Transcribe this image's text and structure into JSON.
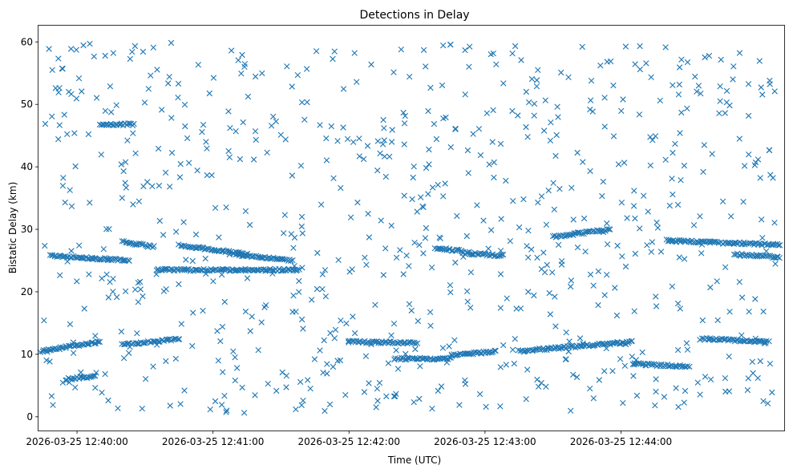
{
  "chart_data": {
    "type": "scatter",
    "title": "Detections in Delay",
    "xlabel": "Time (UTC)",
    "ylabel": "Bistatic Delay (km)",
    "marker": "x",
    "color": "#1f77b4",
    "x_type": "time",
    "x_ticks": [
      "2026-03-25 12:40:00",
      "2026-03-25 12:41:00",
      "2026-03-25 12:42:00",
      "2026-03-25 12:43:00",
      "2026-03-25 12:44:00"
    ],
    "y_ticks": [
      0,
      10,
      20,
      30,
      40,
      50,
      60
    ],
    "xlim": [
      "2026-03-25 12:39:43",
      "2026-03-25 12:45:12"
    ],
    "ylim": [
      -2.2,
      62.6
    ],
    "grid": false,
    "legend": "none",
    "approx_point_count": 1300,
    "tracks": [
      {
        "start": "2026-03-25 12:39:44",
        "end": "2026-03-25 12:40:10",
        "y_start": 10.5,
        "y_end": 12.0
      },
      {
        "start": "2026-03-25 12:39:48",
        "end": "2026-03-25 12:40:23",
        "y_start": 25.8,
        "y_end": 25.0
      },
      {
        "start": "2026-03-25 12:39:55",
        "end": "2026-03-25 12:40:08",
        "y_start": 6.0,
        "y_end": 6.5
      },
      {
        "start": "2026-03-25 12:40:20",
        "end": "2026-03-25 12:40:34",
        "y_start": 28.0,
        "y_end": 27.2
      },
      {
        "start": "2026-03-25 12:40:20",
        "end": "2026-03-25 12:40:45",
        "y_start": 11.5,
        "y_end": 12.5
      },
      {
        "start": "2026-03-25 12:40:45",
        "end": "2026-03-25 12:41:15",
        "y_start": 27.5,
        "y_end": 26.0
      },
      {
        "start": "2026-03-25 12:40:35",
        "end": "2026-03-25 12:41:38",
        "y_start": 23.5,
        "y_end": 23.5
      },
      {
        "start": "2026-03-25 12:40:10",
        "end": "2026-03-25 12:40:25",
        "y_start": 46.8,
        "y_end": 46.8
      },
      {
        "start": "2026-03-25 12:41:10",
        "end": "2026-03-25 12:41:35",
        "y_start": 26.0,
        "y_end": 25.0
      },
      {
        "start": "2026-03-25 12:42:00",
        "end": "2026-03-25 12:42:30",
        "y_start": 12.0,
        "y_end": 11.8
      },
      {
        "start": "2026-03-25 12:42:20",
        "end": "2026-03-25 12:42:45",
        "y_start": 9.3,
        "y_end": 9.3
      },
      {
        "start": "2026-03-25 12:42:45",
        "end": "2026-03-25 12:43:05",
        "y_start": 9.8,
        "y_end": 10.5
      },
      {
        "start": "2026-03-25 12:42:38",
        "end": "2026-03-25 12:42:50",
        "y_start": 27.0,
        "y_end": 26.5
      },
      {
        "start": "2026-03-25 12:42:50",
        "end": "2026-03-25 12:43:08",
        "y_start": 26.2,
        "y_end": 25.8
      },
      {
        "start": "2026-03-25 12:43:15",
        "end": "2026-03-25 12:44:05",
        "y_start": 10.5,
        "y_end": 12.0
      },
      {
        "start": "2026-03-25 12:43:30",
        "end": "2026-03-25 12:43:55",
        "y_start": 28.8,
        "y_end": 30.0
      },
      {
        "start": "2026-03-25 12:44:05",
        "end": "2026-03-25 12:44:30",
        "y_start": 8.5,
        "y_end": 8.0
      },
      {
        "start": "2026-03-25 12:44:20",
        "end": "2026-03-25 12:45:10",
        "y_start": 28.2,
        "y_end": 27.5
      },
      {
        "start": "2026-03-25 12:44:35",
        "end": "2026-03-25 12:45:05",
        "y_start": 12.5,
        "y_end": 12.0
      },
      {
        "start": "2026-03-25 12:44:50",
        "end": "2026-03-25 12:45:10",
        "y_start": 26.0,
        "y_end": 25.5
      }
    ],
    "clutter": {
      "y_range": [
        0,
        60
      ],
      "count": 760
    }
  }
}
